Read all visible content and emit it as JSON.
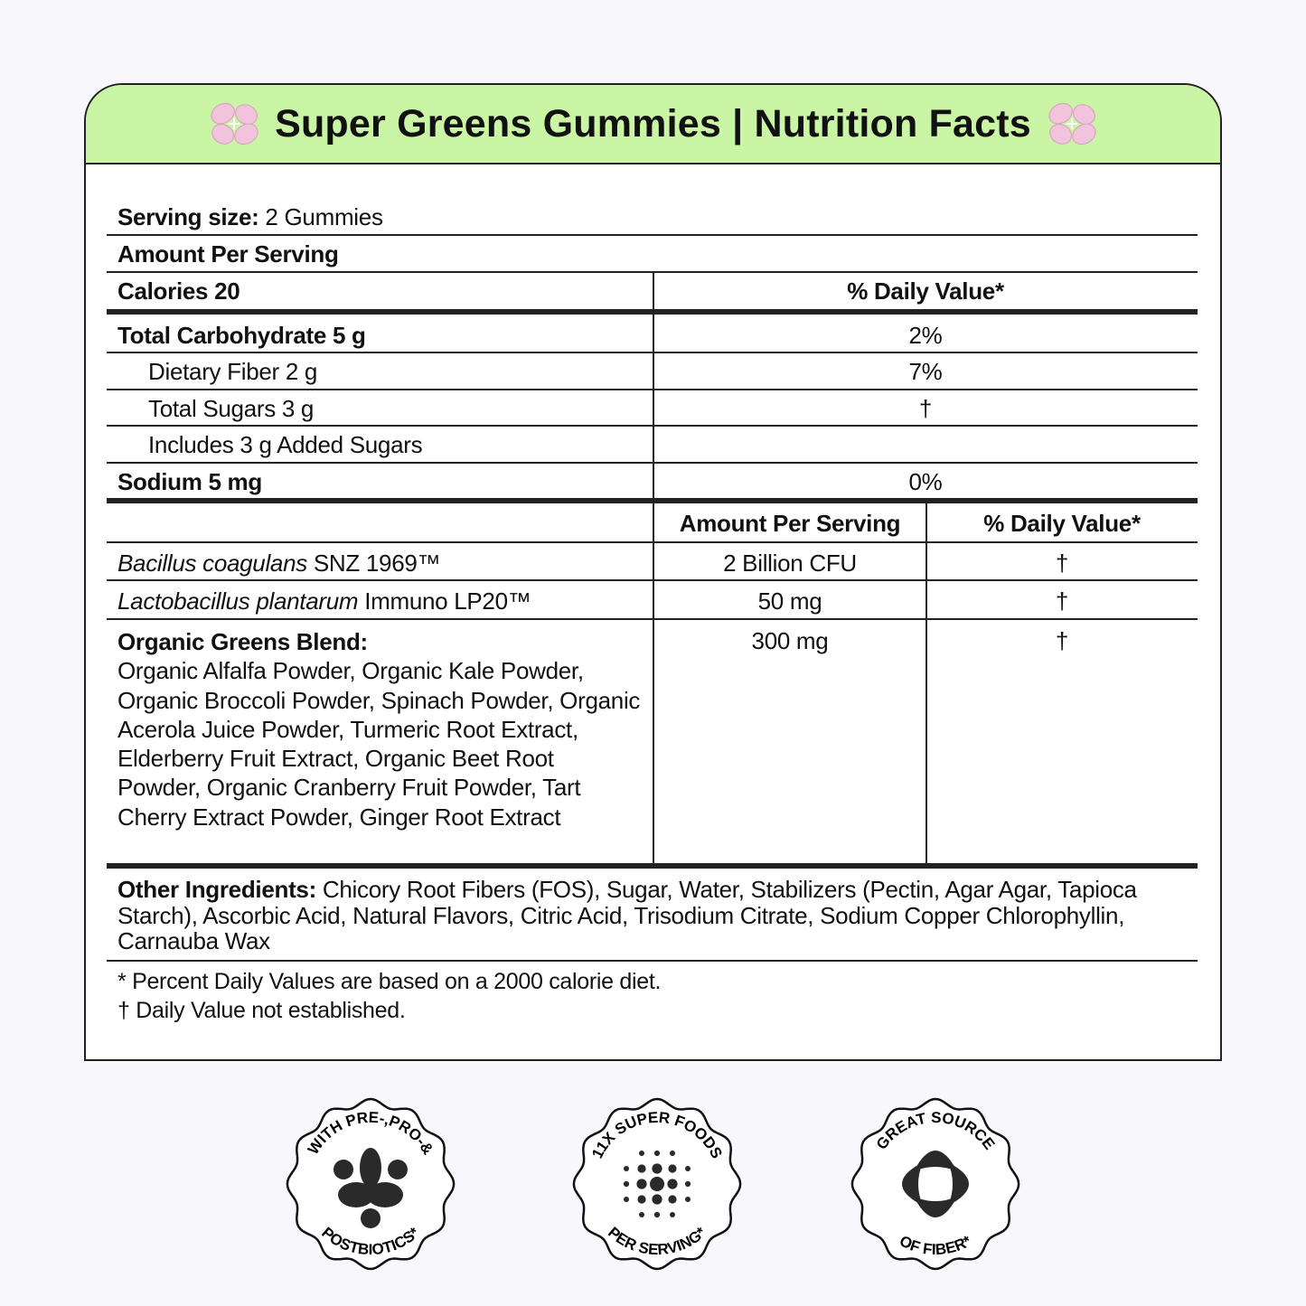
{
  "title": "Super Greens Gummies | Nutrition Facts",
  "title_icon": "pink-flower-icon",
  "colors": {
    "header_bg": "#c9f5a5",
    "background": "#f7f7fc",
    "flower": "#f1c3dc"
  },
  "serving": {
    "label": "Serving size:",
    "value": " 2 Gummies"
  },
  "amount_per_serving": "Amount Per Serving",
  "calories": "Calories 20",
  "daily_value_header": "% Daily Value*",
  "nutrients": [
    {
      "name": "Total Carbohydrate 5 g",
      "dv": "2%"
    },
    {
      "name": "Dietary Fiber 2 g",
      "dv": "7%"
    },
    {
      "name": "Total Sugars 3 g",
      "dv": "†"
    },
    {
      "name": "Includes 3 g Added Sugars",
      "dv": ""
    },
    {
      "name": "Sodium 5 mg",
      "dv": "0%"
    }
  ],
  "supplement_headers": {
    "amount": "Amount Per Serving",
    "dv": "% Daily Value*"
  },
  "supplements": [
    {
      "italic": "Bacillus coagulans",
      "rest": " SNZ 1969™",
      "amount": "2 Billion CFU",
      "dv": "†"
    },
    {
      "italic": "Lactobacillus plantarum",
      "rest": " Immuno LP20™",
      "amount": "50 mg",
      "dv": "†"
    },
    {
      "name": "Organic Greens Blend:",
      "ingredients": "Organic Alfalfa Powder, Organic Kale Powder, Organic Broccoli Powder, Spinach Powder, Organic Acerola Juice Powder, Turmeric Root Extract, Elderberry Fruit Extract, Organic Beet Root Powder, Organic Cranberry Fruit Powder, Tart Cherry Extract Powder, Ginger Root Extract",
      "amount": "300 mg",
      "dv": "†"
    }
  ],
  "other_ingredients": {
    "label": "Other Ingredients:",
    "text": " Chicory Root Fibers (FOS), Sugar, Water, Stabilizers (Pectin, Agar Agar, Tapioca Starch), Ascorbic Acid, Natural Flavors, Citric Acid, Trisodium Citrate, Sodium Copper Chlorophyllin, Carnauba Wax"
  },
  "footnotes": [
    "* Percent Daily Values are based on a 2000 calorie diet.",
    "† Daily Value not established."
  ],
  "badges": [
    {
      "top": "WITH PRE-,PRO-&",
      "bottom": "POSTBIOTICS*",
      "icon": "biotics-blob-icon"
    },
    {
      "top": "11X SUPER FOODS",
      "bottom": "PER SERVING*",
      "icon": "dot-grid-icon"
    },
    {
      "top": "GREAT SOURCE",
      "bottom": "OF FIBER*",
      "icon": "fiber-petals-icon"
    }
  ]
}
